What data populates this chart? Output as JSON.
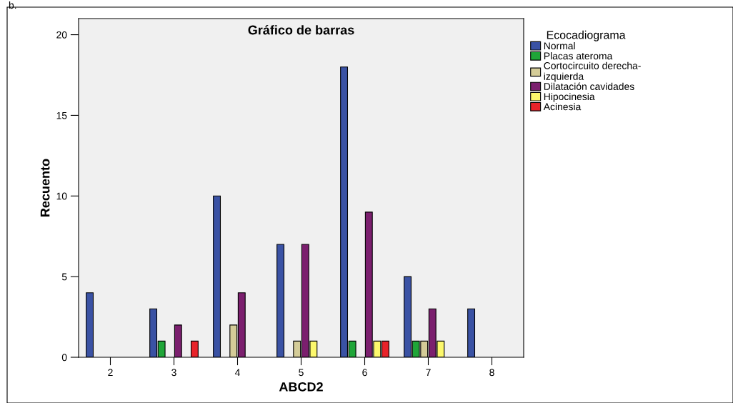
{
  "chart_data": {
    "type": "bar",
    "title": "Gráfico de barras",
    "xlabel": "ABCD2",
    "ylabel": "Recuento",
    "legend_title": "Ecocadiograma",
    "categories": [
      "2",
      "3",
      "4",
      "5",
      "6",
      "7",
      "8"
    ],
    "series": [
      {
        "name": "Normal",
        "color": "#3a52a4",
        "values": [
          4,
          3,
          10,
          7,
          18,
          5,
          3
        ]
      },
      {
        "name": "Placas ateroma",
        "color": "#1fa538",
        "values": [
          null,
          1,
          null,
          null,
          1,
          1,
          null
        ]
      },
      {
        "name": "Cortocircuito derecha-\nizquierda",
        "color": "#d4cc98",
        "values": [
          null,
          null,
          2,
          1,
          null,
          1,
          null
        ]
      },
      {
        "name": "Dilatación cavidades",
        "color": "#7b1f6e",
        "values": [
          null,
          2,
          4,
          7,
          9,
          3,
          null
        ]
      },
      {
        "name": "Hipocinesia",
        "color": "#fcf86c",
        "values": [
          null,
          null,
          null,
          1,
          1,
          1,
          null
        ]
      },
      {
        "name": "Acinesia",
        "color": "#e8232a",
        "values": [
          null,
          1,
          null,
          null,
          1,
          null,
          null
        ]
      }
    ],
    "ylim": [
      0,
      21
    ],
    "yticks": [
      0,
      5,
      10,
      15,
      20
    ],
    "grid": false,
    "legend": "right",
    "annotations": [
      "b."
    ]
  }
}
